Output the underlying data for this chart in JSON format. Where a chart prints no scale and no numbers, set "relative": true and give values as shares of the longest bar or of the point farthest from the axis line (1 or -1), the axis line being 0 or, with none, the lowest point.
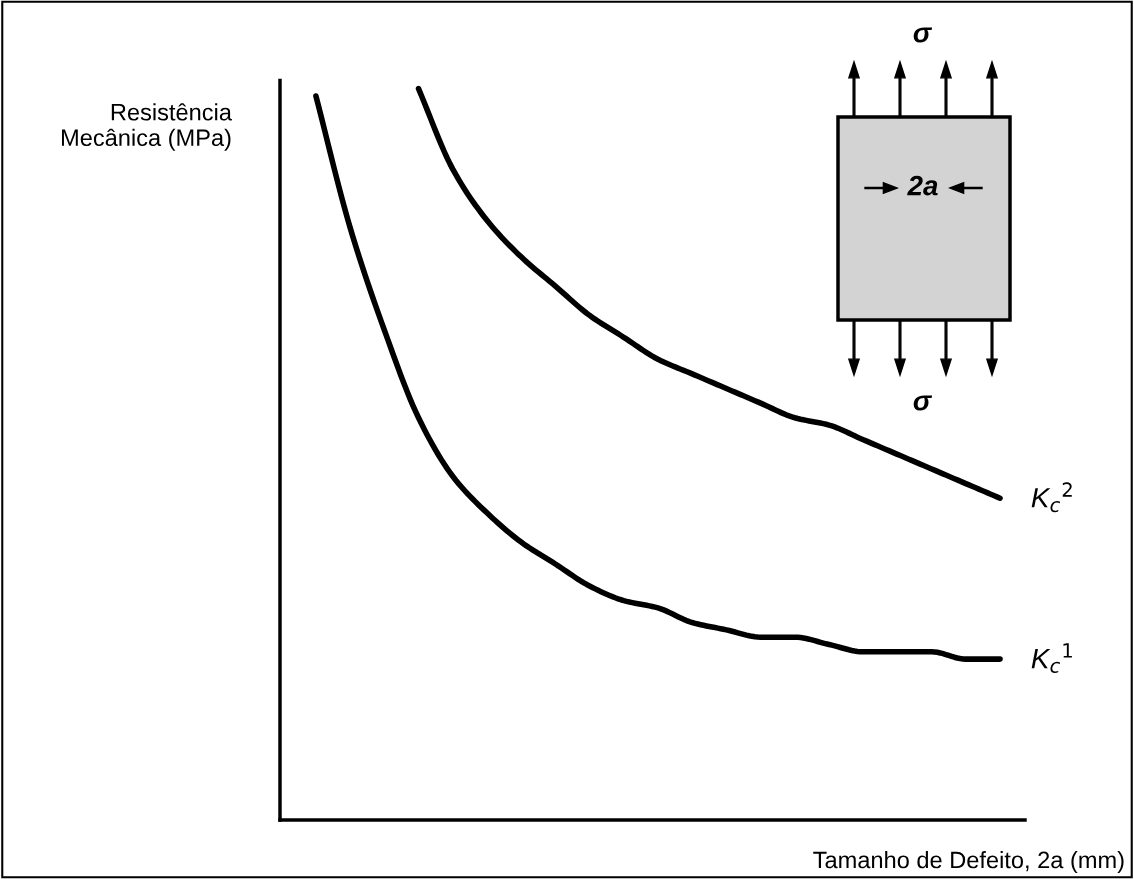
{
  "chart_data": {
    "type": "line",
    "relative": true,
    "xlabel": "Tamanho de Defeito, 2a (mm)",
    "ylabel": "Resistência\nMecânica (MPa)",
    "categories": [
      null,
      null,
      null,
      null,
      null,
      null,
      null,
      null,
      null,
      null,
      null,
      null,
      null,
      null,
      null,
      null,
      null,
      null,
      null,
      null,
      null
    ],
    "series": [
      {
        "name": "K$_{c}$$^{1}$",
        "color": "#000000",
        "values": [
          0.99,
          0.81,
          0.67,
          0.55,
          0.47,
          0.42,
          0.38,
          0.35,
          0.32,
          0.3,
          0.29,
          0.27,
          0.26,
          0.25,
          0.25,
          0.24,
          0.23,
          0.23,
          0.23,
          0.22,
          0.22
        ]
      },
      {
        "name": "K$_{c}$$^{2}$",
        "color": "#000000",
        "values": [
          null,
          null,
          null,
          1.0,
          0.89,
          0.82,
          0.77,
          0.73,
          0.69,
          0.66,
          0.63,
          0.61,
          0.59,
          0.57,
          0.55,
          0.54,
          0.52,
          0.5,
          0.48,
          0.46,
          0.44
        ]
      }
    ],
    "annotations": [
      "σ",
      "σ",
      "2a"
    ],
    "legend": false,
    "marker": "none",
    "line_style": "solid"
  }
}
